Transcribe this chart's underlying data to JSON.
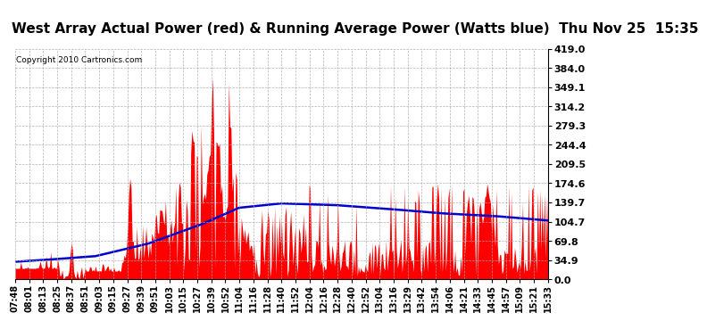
{
  "title": "West Array Actual Power (red) & Running Average Power (Watts blue)  Thu Nov 25  15:35",
  "copyright": "Copyright 2010 Cartronics.com",
  "yticks": [
    0.0,
    34.9,
    69.8,
    104.7,
    139.7,
    174.6,
    209.5,
    244.4,
    279.3,
    314.2,
    349.1,
    384.0,
    419.0
  ],
  "ymax": 419.0,
  "ymin": 0.0,
  "bg_color": "#ffffff",
  "red_color": "#ff0000",
  "blue_color": "#0000cc",
  "grid_color": "#aaaaaa",
  "xtick_labels": [
    "07:48",
    "08:01",
    "08:13",
    "08:25",
    "08:37",
    "08:51",
    "09:03",
    "09:15",
    "09:27",
    "09:39",
    "09:51",
    "10:03",
    "10:15",
    "10:27",
    "10:39",
    "10:52",
    "11:04",
    "11:16",
    "11:28",
    "11:40",
    "11:52",
    "12:04",
    "12:16",
    "12:28",
    "12:40",
    "12:52",
    "13:04",
    "13:16",
    "13:29",
    "13:42",
    "13:54",
    "14:06",
    "14:21",
    "14:33",
    "14:45",
    "14:57",
    "15:09",
    "15:21",
    "15:33"
  ],
  "n_points": 465,
  "blue_keypoints_x": [
    0,
    0.05,
    0.15,
    0.25,
    0.35,
    0.42,
    0.5,
    0.6,
    0.7,
    0.8,
    0.9,
    1.0
  ],
  "blue_keypoints_y": [
    32,
    35,
    42,
    65,
    100,
    130,
    138,
    135,
    128,
    120,
    115,
    107
  ]
}
